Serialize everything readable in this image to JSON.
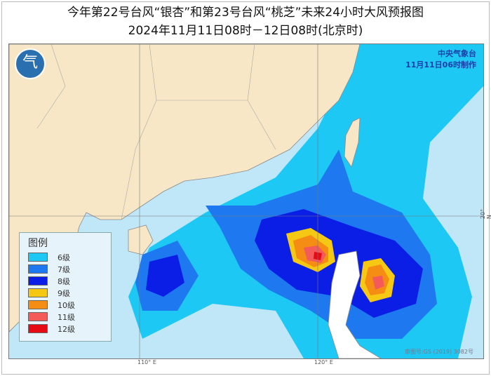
{
  "title": "今年第22号台风“银杏”和第23号台风“桃芝”未来24小时大风预报图",
  "subtitle": "2024年11月11日08时－12日08时(北京时)",
  "agency": {
    "name": "中央气象台",
    "issued": "11月11日06时制作"
  },
  "legend": {
    "title": "图例",
    "items": [
      {
        "label": "6级",
        "color": "#1ec8f5"
      },
      {
        "label": "7级",
        "color": "#1e78f0"
      },
      {
        "label": "8级",
        "color": "#0a1ee6"
      },
      {
        "label": "9级",
        "color": "#f5c814"
      },
      {
        "label": "10级",
        "color": "#f58c14"
      },
      {
        "label": "11级",
        "color": "#f55a5a"
      },
      {
        "label": "12级",
        "color": "#e60a14"
      }
    ]
  },
  "axes": {
    "lon_ticks": [
      "110° E",
      "120° E"
    ],
    "lat_ticks": [
      "20° N"
    ]
  },
  "review_number": "审图号:GS (2019) 3082号",
  "colors": {
    "land": "#f7e7c6",
    "sea": "#c0e7f8"
  }
}
